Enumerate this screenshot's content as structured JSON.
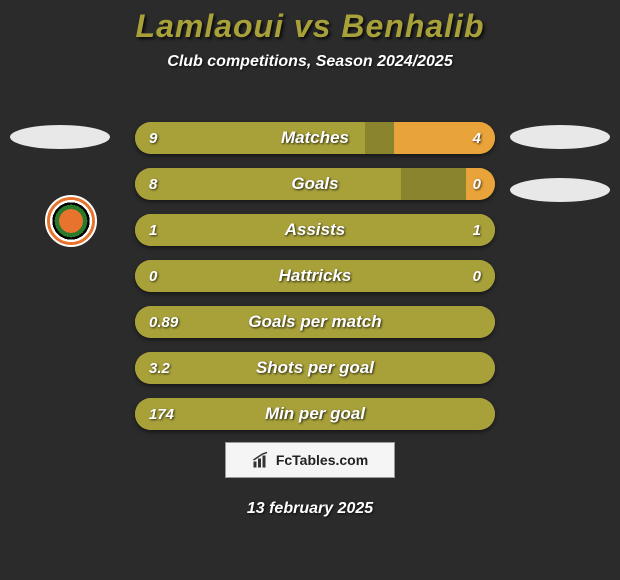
{
  "title": {
    "text": "Lamlaoui vs Benhalib",
    "fontsize": 32,
    "color": "#a8a13a"
  },
  "subtitle": {
    "text": "Club competitions, Season 2024/2025",
    "fontsize": 16,
    "color": "#ffffff"
  },
  "colors": {
    "background": "#2b2b2b",
    "bar_olive": "#a8a13a",
    "bar_dark_olive": "#8a842f",
    "bar_orange": "#e8a33a",
    "text": "#ffffff"
  },
  "bar_style": {
    "height": 32,
    "gap": 14,
    "border_radius": 16,
    "font_size": 17,
    "value_font_size": 15
  },
  "bars": [
    {
      "label": "Matches",
      "left_value": "9",
      "right_value": "4",
      "left_fill_pct": 64,
      "right_fill_pct": 28,
      "left_color": "#a8a13a",
      "right_color": "#e8a33a",
      "bg_color": "#8a842f"
    },
    {
      "label": "Goals",
      "left_value": "8",
      "right_value": "0",
      "left_fill_pct": 74,
      "right_fill_pct": 8,
      "left_color": "#a8a13a",
      "right_color": "#e8a33a",
      "bg_color": "#8a842f"
    },
    {
      "label": "Assists",
      "left_value": "1",
      "right_value": "1",
      "left_fill_pct": 100,
      "right_fill_pct": 0,
      "left_color": "#a8a13a",
      "right_color": "#a8a13a",
      "bg_color": "#a8a13a"
    },
    {
      "label": "Hattricks",
      "left_value": "0",
      "right_value": "0",
      "left_fill_pct": 100,
      "right_fill_pct": 0,
      "left_color": "#a8a13a",
      "right_color": "#a8a13a",
      "bg_color": "#a8a13a"
    },
    {
      "label": "Goals per match",
      "left_value": "0.89",
      "right_value": "",
      "left_fill_pct": 100,
      "right_fill_pct": 0,
      "left_color": "#a8a13a",
      "right_color": "#a8a13a",
      "bg_color": "#a8a13a"
    },
    {
      "label": "Shots per goal",
      "left_value": "3.2",
      "right_value": "",
      "left_fill_pct": 100,
      "right_fill_pct": 0,
      "left_color": "#a8a13a",
      "right_color": "#a8a13a",
      "bg_color": "#a8a13a"
    },
    {
      "label": "Min per goal",
      "left_value": "174",
      "right_value": "",
      "left_fill_pct": 100,
      "right_fill_pct": 0,
      "left_color": "#a8a13a",
      "right_color": "#a8a13a",
      "bg_color": "#a8a13a"
    }
  ],
  "watermark": {
    "text": "FcTables.com",
    "fontsize": 14
  },
  "date": {
    "text": "13 february 2025",
    "fontsize": 16
  }
}
